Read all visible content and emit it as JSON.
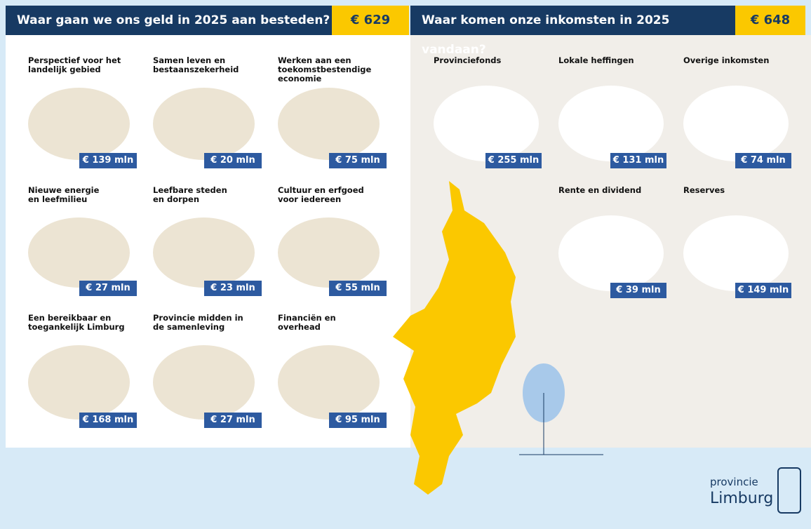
{
  "left": {
    "title": "Waar gaan we ons geld in 2025 aan besteden?",
    "total": "€ 629",
    "items": [
      {
        "label": "Perspectief voor het\nlandelijk gebied",
        "amount": "€ 139 mln"
      },
      {
        "label": "Samen leven en\nbestaanszekerheid",
        "amount": "€ 20 mln"
      },
      {
        "label": "Werken aan een\ntoekomstbestendige\neconomie",
        "amount": "€ 75 mln"
      },
      {
        "label": "Nieuwe energie\nen leefmilieu",
        "amount": "€ 27 mln"
      },
      {
        "label": "Leefbare steden\nen dorpen",
        "amount": "€ 23 mln"
      },
      {
        "label": "Cultuur en erfgoed\nvoor iedereen",
        "amount": "€ 55 mln"
      },
      {
        "label": "Een bereikbaar en\ntoegankelijk Limburg",
        "amount": "€ 168 mln"
      },
      {
        "label": "Provincie midden in\nde samenleving",
        "amount": "€ 27 mln"
      },
      {
        "label": "Financiën en\noverhead",
        "amount": "€ 95 mln"
      }
    ]
  },
  "right": {
    "title": "Waar komen onze inkomsten in 2025 vandaan?",
    "total": "€ 648",
    "items": [
      {
        "label": "Provinciefonds",
        "amount": "€ 255 mln"
      },
      {
        "label": "Lokale heffingen",
        "amount": "€ 131 mln"
      },
      {
        "label": "Overige inkomsten",
        "amount": "€ 74 mln"
      },
      {
        "label": "Rente en dividend",
        "amount": "€ 39 mln"
      },
      {
        "label": "Reserves",
        "amount": "€ 149 mln"
      }
    ]
  },
  "logo": {
    "line1": "provincie",
    "line2": "Limburg"
  }
}
